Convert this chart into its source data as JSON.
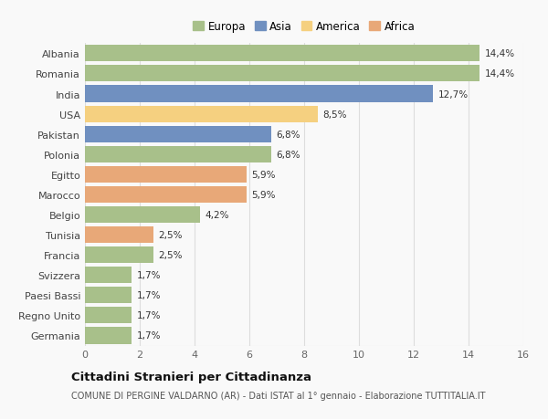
{
  "countries": [
    "Albania",
    "Romania",
    "India",
    "USA",
    "Pakistan",
    "Polonia",
    "Egitto",
    "Marocco",
    "Belgio",
    "Tunisia",
    "Francia",
    "Svizzera",
    "Paesi Bassi",
    "Regno Unito",
    "Germania"
  ],
  "values": [
    14.4,
    14.4,
    12.7,
    8.5,
    6.8,
    6.8,
    5.9,
    5.9,
    4.2,
    2.5,
    2.5,
    1.7,
    1.7,
    1.7,
    1.7
  ],
  "labels": [
    "14,4%",
    "14,4%",
    "12,7%",
    "8,5%",
    "6,8%",
    "6,8%",
    "5,9%",
    "5,9%",
    "4,2%",
    "2,5%",
    "2,5%",
    "1,7%",
    "1,7%",
    "1,7%",
    "1,7%"
  ],
  "continents": [
    "Europa",
    "Europa",
    "Asia",
    "America",
    "Asia",
    "Europa",
    "Africa",
    "Africa",
    "Europa",
    "Africa",
    "Europa",
    "Europa",
    "Europa",
    "Europa",
    "Europa"
  ],
  "colors": {
    "Europa": "#a8c08a",
    "Asia": "#7090c0",
    "America": "#f5d080",
    "Africa": "#e8a878"
  },
  "legend_order": [
    "Europa",
    "Asia",
    "America",
    "Africa"
  ],
  "title": "Cittadini Stranieri per Cittadinanza",
  "subtitle": "COMUNE DI PERGINE VALDARNO (AR) - Dati ISTAT al 1° gennaio - Elaborazione TUTTITALIA.IT",
  "xlim": [
    0,
    16
  ],
  "xticks": [
    0,
    2,
    4,
    6,
    8,
    10,
    12,
    14,
    16
  ],
  "background_color": "#f9f9f9",
  "grid_color": "#dddddd"
}
